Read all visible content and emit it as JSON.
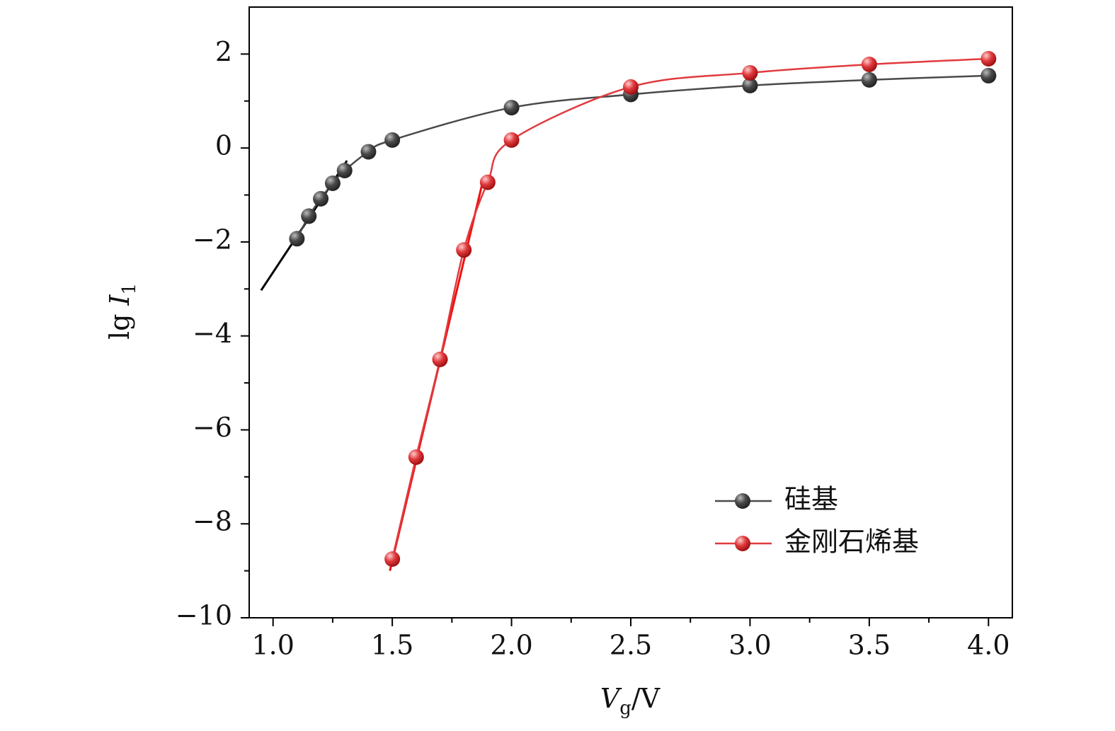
{
  "chart_data": {
    "type": "line",
    "x_label": {
      "symbol": "V",
      "sub": "g",
      "unit": "/V"
    },
    "y_label": {
      "prefix": "lg",
      "symbol": "I",
      "sub": "1"
    },
    "xlim": [
      0.9,
      4.1
    ],
    "ylim": [
      -10,
      3
    ],
    "xticks": [
      {
        "value": 1,
        "label": "1.0"
      },
      {
        "value": 1.5,
        "label": "1.5"
      },
      {
        "value": 2,
        "label": "2.0"
      },
      {
        "value": 2.5,
        "label": "2.5"
      },
      {
        "value": 3,
        "label": "3.0"
      },
      {
        "value": 3.5,
        "label": "3.5"
      },
      {
        "value": 4,
        "label": "4.0"
      }
    ],
    "yticks": [
      {
        "value": -10,
        "label": "−10"
      },
      {
        "value": -8,
        "label": "−8"
      },
      {
        "value": -6,
        "label": "−6"
      },
      {
        "value": -4,
        "label": "−4"
      },
      {
        "value": -2,
        "label": "−2"
      },
      0,
      2
    ],
    "minor_xticks": [
      1.25,
      1.75,
      2.25,
      2.75,
      3.25,
      3.75
    ],
    "minor_yticks": [
      -9,
      -7,
      -5,
      -3,
      -1,
      1
    ],
    "legend": "lower right",
    "series": [
      {
        "name": "硅基",
        "color": "#4a4a4a",
        "x": [
          1.1,
          1.15,
          1.2,
          1.25,
          1.3,
          1.4,
          1.5,
          2.0,
          2.5,
          3.0,
          3.5,
          4.0
        ],
        "values": [
          -1.93,
          -1.45,
          -1.08,
          -0.75,
          -0.48,
          -0.08,
          0.17,
          0.86,
          1.14,
          1.33,
          1.45,
          1.54
        ]
      },
      {
        "name": "金刚石烯基",
        "color": "#e03a3e",
        "x": [
          1.5,
          1.6,
          1.7,
          1.8,
          1.9,
          2.0,
          2.5,
          3.0,
          3.5,
          4.0
        ],
        "values": [
          -8.75,
          -6.58,
          -4.5,
          -2.17,
          -0.73,
          0.17,
          1.3,
          1.6,
          1.78,
          1.9
        ]
      }
    ],
    "fit_lines": [
      {
        "color": "#000000",
        "x": [
          0.95,
          1.31
        ],
        "values": [
          -3.03,
          -0.27
        ]
      },
      {
        "color": "#ee1111",
        "x": [
          1.49,
          1.88
        ],
        "values": [
          -9.0,
          -0.7
        ]
      }
    ]
  }
}
